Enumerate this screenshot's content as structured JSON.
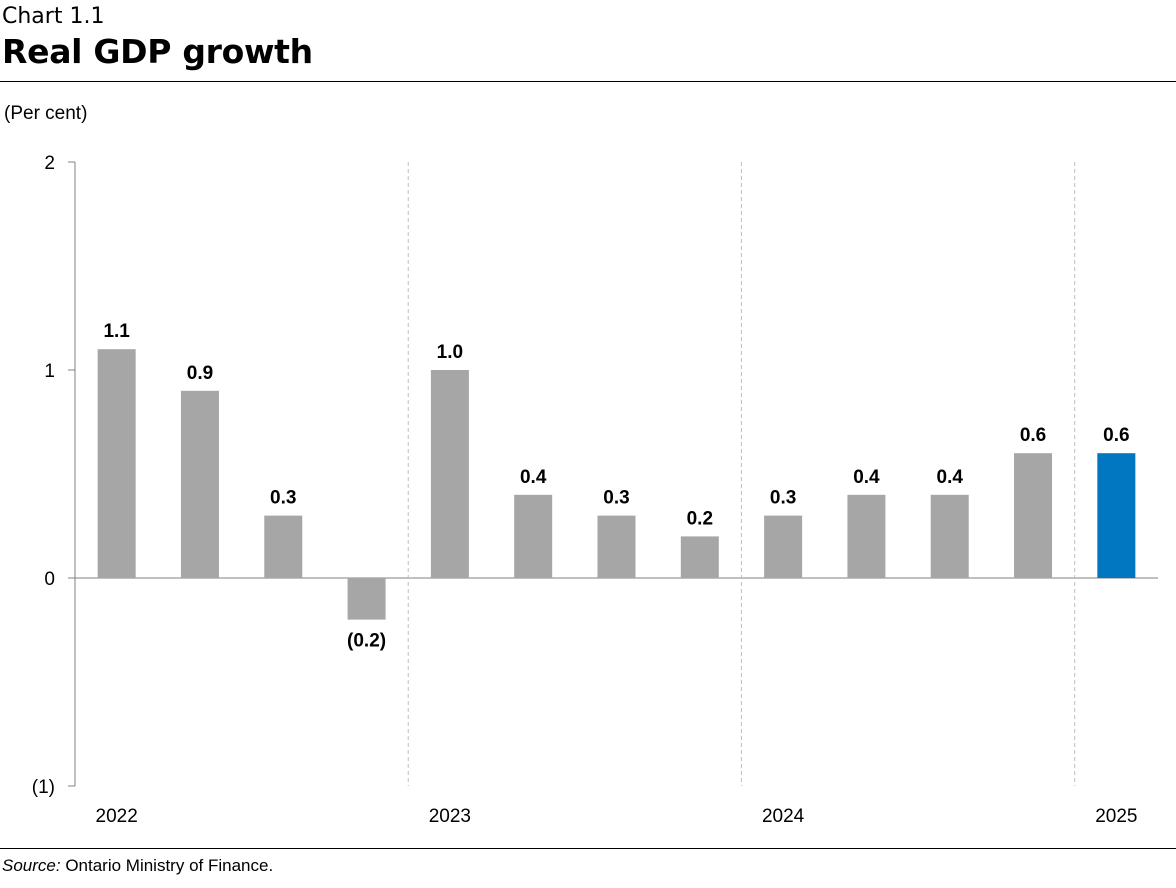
{
  "header": {
    "chart_number": "Chart 1.1",
    "title": "Real GDP growth"
  },
  "chart_data": {
    "type": "bar",
    "title": "Real GDP growth",
    "ylabel": "(Per cent)",
    "ylim": [
      -1,
      2
    ],
    "yticks": [
      -1,
      0,
      1,
      2
    ],
    "ytick_labels": [
      "(1)",
      "0",
      "1",
      "2"
    ],
    "year_labels": [
      "2022",
      "2023",
      "2024",
      "2025"
    ],
    "year_group_sizes": [
      4,
      4,
      4,
      1
    ],
    "values": [
      1.1,
      0.9,
      0.3,
      -0.2,
      1.0,
      0.4,
      0.3,
      0.2,
      0.3,
      0.4,
      0.4,
      0.6,
      0.6
    ],
    "value_labels": [
      "1.1",
      "0.9",
      "0.3",
      "(0.2)",
      "1.0",
      "0.4",
      "0.3",
      "0.2",
      "0.3",
      "0.4",
      "0.4",
      "0.6",
      "0.6"
    ],
    "colors": {
      "default_bar": "#a6a6a6",
      "highlight_bar": "#0077c0",
      "axis": "#808080",
      "separator": "#bfbfbf"
    },
    "highlight_index": 12,
    "grid": false,
    "legend": "none"
  },
  "footer": {
    "source_label": "Source:",
    "source_text": " Ontario Ministry of Finance."
  }
}
